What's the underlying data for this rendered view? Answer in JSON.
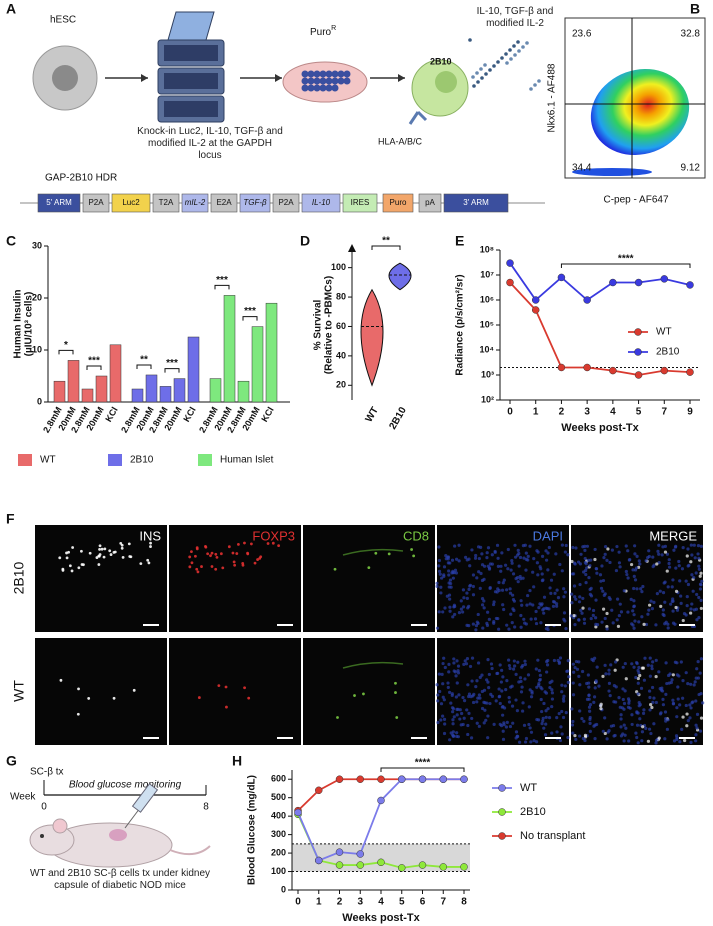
{
  "panel_labels": [
    "A",
    "B",
    "C",
    "D",
    "E",
    "F",
    "G",
    "H"
  ],
  "panel_a": {
    "hesc": "hESC",
    "knockin": "Knock-in Luc2, IL-10, TGF-β and modified IL-2 at the GAPDH locus",
    "puro": "Puro",
    "puro_sup": "R",
    "secreted": "IL-10, TGF-β and modified IL-2",
    "clone": "2B10",
    "hla": "HLA-A/B/C",
    "construct_title": "GAP-2B10 HDR",
    "construct": [
      {
        "label": "5' ARM",
        "color": "#3b4f9e"
      },
      {
        "label": "P2A",
        "color": "#c4c4c4"
      },
      {
        "label": "Luc2",
        "color": "#f2d24c"
      },
      {
        "label": "T2A",
        "color": "#c4c4c4"
      },
      {
        "label": "mIL-2",
        "color": "#aeb8ea"
      },
      {
        "label": "E2A",
        "color": "#c4c4c4"
      },
      {
        "label": "TGF-β",
        "color": "#aeb8ea"
      },
      {
        "label": "P2A",
        "color": "#c4c4c4"
      },
      {
        "label": "IL-10",
        "color": "#aeb8ea"
      },
      {
        "label": "IRES",
        "color": "#c4ecb4"
      },
      {
        "label": "Puro",
        "color": "#f2a66a"
      },
      {
        "label": "pA",
        "color": "#c4c4c4"
      },
      {
        "label": "3' ARM",
        "color": "#3b4f9e"
      }
    ]
  },
  "panel_b": {
    "y_label": "Nkx6.1 - AF488",
    "x_label": "C-pep - AF647",
    "quadrants": [
      23.6,
      32.8,
      34.4,
      9.12
    ]
  },
  "chart_data": [
    {
      "type": "bar",
      "y_label": [
        "Human Insulin",
        "(µIU/10³ cells)"
      ],
      "categories": [
        "2.8mM",
        "20mM",
        "2.8mM",
        "20mM",
        "KCl"
      ],
      "series": [
        {
          "name": "WT",
          "color": "#e86a6a",
          "values": [
            4,
            8,
            2.5,
            5,
            11
          ]
        },
        {
          "name": "2B10",
          "color": "#6e6ee8",
          "values": [
            2.5,
            5.2,
            3,
            4.5,
            12.5
          ]
        },
        {
          "name": "Human Islet",
          "color": "#7ee87e",
          "values": [
            4.5,
            20.5,
            4,
            14.5,
            19
          ]
        }
      ],
      "ylim": [
        0,
        30
      ],
      "yticks": [
        0,
        10,
        20,
        30
      ],
      "significance": [
        "*",
        "***",
        "**",
        "***",
        "***",
        "***"
      ]
    },
    {
      "type": "violin",
      "y_label": [
        "% Survival",
        "(Relative to -PBMCs)"
      ],
      "categories": [
        "WT",
        "2B10"
      ],
      "colors": [
        "#e86a6a",
        "#6e6ee8"
      ],
      "values": [
        60,
        95
      ],
      "min": [
        20,
        85
      ],
      "max": [
        85,
        103
      ],
      "ylim": [
        10,
        112
      ],
      "yticks": [
        20,
        40,
        60,
        80,
        100
      ],
      "significance": "**"
    },
    {
      "type": "line",
      "log_scale": true,
      "y_label": "Radiance (p/s/cm²/sr)",
      "x_label": "Weeks post-Tx",
      "categories": [
        "0",
        "1",
        "2",
        "3",
        "4",
        "5",
        "7",
        "9"
      ],
      "series": [
        {
          "name": "WT",
          "color": "#d93a2f",
          "values": [
            5000000,
            400000,
            2000,
            2000,
            1500,
            1000,
            1500,
            1300
          ]
        },
        {
          "name": "2B10",
          "color": "#3a3ae0",
          "values": [
            30000000,
            1000000,
            8000000,
            1000000,
            5000000,
            5000000,
            7000000,
            4000000
          ]
        }
      ],
      "ylim": [
        100,
        100000000
      ],
      "yticks": [
        {
          "value": 100,
          "label": "10²"
        },
        {
          "value": 1000,
          "label": "10³"
        },
        {
          "value": 10000,
          "label": "10⁴"
        },
        {
          "value": 100000,
          "label": "10⁵"
        },
        {
          "value": 1000000,
          "label": "10⁶"
        },
        {
          "value": 10000000,
          "label": "10⁷"
        },
        {
          "value": 100000000,
          "label": "10⁸"
        }
      ],
      "reference_line": 2000,
      "significance": "****",
      "legend": "right"
    },
    {
      "type": "line",
      "y_label": "Blood Glucose (mg/dL)",
      "x_label": "Weeks post-Tx",
      "x": [
        0,
        1,
        2,
        3,
        4,
        5,
        6,
        7,
        8
      ],
      "xticks": [
        0,
        1,
        2,
        3,
        4,
        5,
        6,
        7,
        8
      ],
      "series": [
        {
          "name": "WT",
          "color": "#7b7bea",
          "values": [
            420,
            160,
            205,
            195,
            485,
            600,
            600,
            600,
            600
          ]
        },
        {
          "name": "2B10",
          "color": "#8ee83a",
          "values": [
            410,
            160,
            135,
            135,
            150,
            120,
            135,
            125,
            125
          ]
        },
        {
          "name": "No transplant",
          "color": "#d93a2f",
          "values": [
            430,
            540,
            600,
            600,
            600,
            600,
            600,
            600,
            600
          ]
        }
      ],
      "ylim": [
        0,
        650
      ],
      "yticks": [
        0,
        100,
        200,
        300,
        400,
        500,
        600
      ],
      "band": [
        100,
        250
      ],
      "significance": "****",
      "legend": "right"
    }
  ],
  "panel_f": {
    "channels": [
      {
        "label": "INS",
        "color": "#ffffff"
      },
      {
        "label": "FOXP3",
        "color": "#e03030"
      },
      {
        "label": "CD8",
        "color": "#7ac943"
      },
      {
        "label": "DAPI",
        "color": "#4a78e0"
      },
      {
        "label": "MERGE",
        "color": "#ffffff"
      }
    ],
    "rows": [
      "2B10",
      "WT"
    ]
  },
  "panel_g": {
    "start_label": "SC-β tx",
    "monitoring": "Blood glucose monitoring",
    "week": "Week",
    "start": "0",
    "end": "8",
    "caption": "WT and 2B10 SC-β cells tx under kidney capsule of diabetic NOD mice"
  }
}
